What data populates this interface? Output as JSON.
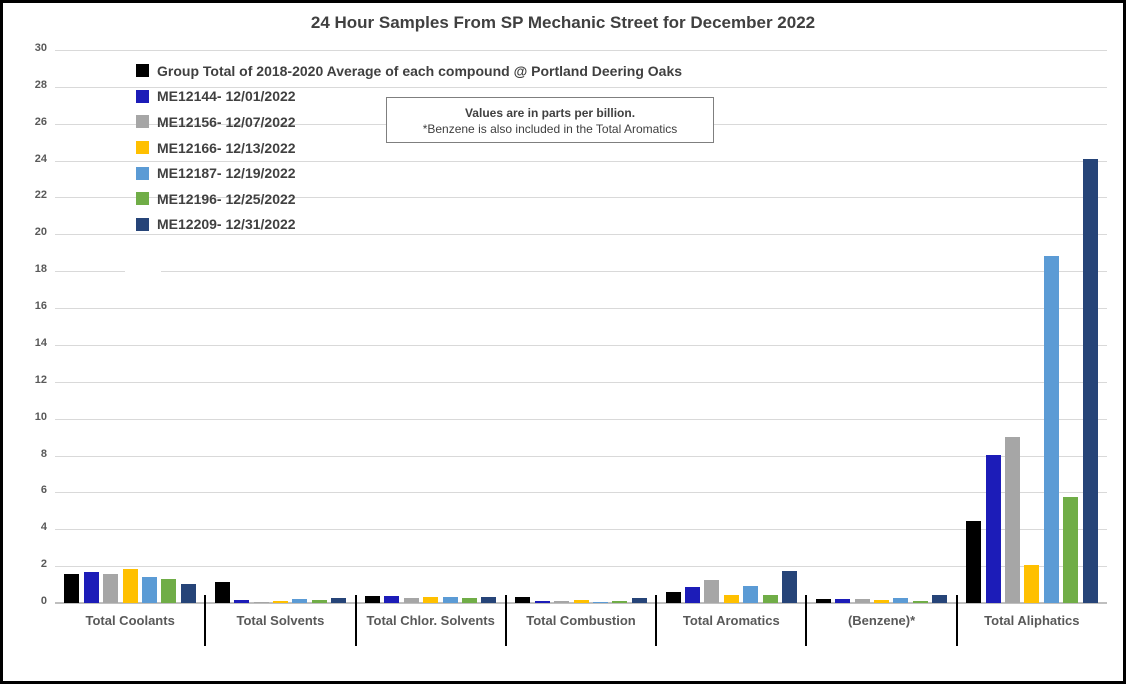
{
  "chart_data": {
    "type": "bar",
    "title": "24 Hour Samples From SP Mechanic Street for December 2022",
    "units": "parts per billion",
    "annotation": {
      "line1": "Values are in parts per billion.",
      "line2": "*Benzene is also included in the Total Aromatics"
    },
    "categories": [
      "Total Coolants",
      "Total Solvents",
      "Total Chlor. Solvents",
      "Total Combustion",
      "Total Aromatics",
      "(Benzene)*",
      "Total Aliphatics"
    ],
    "series": [
      {
        "name": "Group Total of 2018-2020 Average of each compound @ Portland Deering Oaks",
        "color": "#000000",
        "values": [
          1.55,
          1.15,
          0.4,
          0.3,
          0.6,
          0.2,
          4.45
        ]
      },
      {
        "name": "ME12144- 12/01/2022",
        "color": "#1C1CB8",
        "values": [
          1.7,
          0.15,
          0.4,
          0.1,
          0.85,
          0.2,
          8.05
        ]
      },
      {
        "name": "ME12156- 12/07/2022",
        "color": "#A6A6A6",
        "values": [
          1.6,
          0.07,
          0.25,
          0.1,
          1.25,
          0.2,
          9.0
        ]
      },
      {
        "name": "ME12166- 12/13/2022",
        "color": "#FFC000",
        "values": [
          1.85,
          0.12,
          0.3,
          0.15,
          0.45,
          0.15,
          2.05
        ]
      },
      {
        "name": "ME12187- 12/19/2022",
        "color": "#5B9BD5",
        "values": [
          1.4,
          0.2,
          0.3,
          0.03,
          0.9,
          0.25,
          18.85
        ]
      },
      {
        "name": "ME12196- 12/25/2022",
        "color": "#70AD47",
        "values": [
          1.3,
          0.15,
          0.25,
          0.1,
          0.45,
          0.12,
          5.75
        ]
      },
      {
        "name": "ME12209- 12/31/2022",
        "color": "#264478",
        "values": [
          1.05,
          0.25,
          0.3,
          0.25,
          1.75,
          0.45,
          24.1
        ]
      }
    ],
    "ylim": [
      0,
      30
    ],
    "ytick_step": 2,
    "grid": true,
    "legend_position": "top-left",
    "xlabel": "",
    "ylabel": ""
  },
  "colors": {
    "title_text": "#404040",
    "axis_text": "#595959",
    "gridline": "#D9D9D9",
    "axis_line": "#BFBFBF",
    "separator": "#000000",
    "border": "#000000"
  }
}
